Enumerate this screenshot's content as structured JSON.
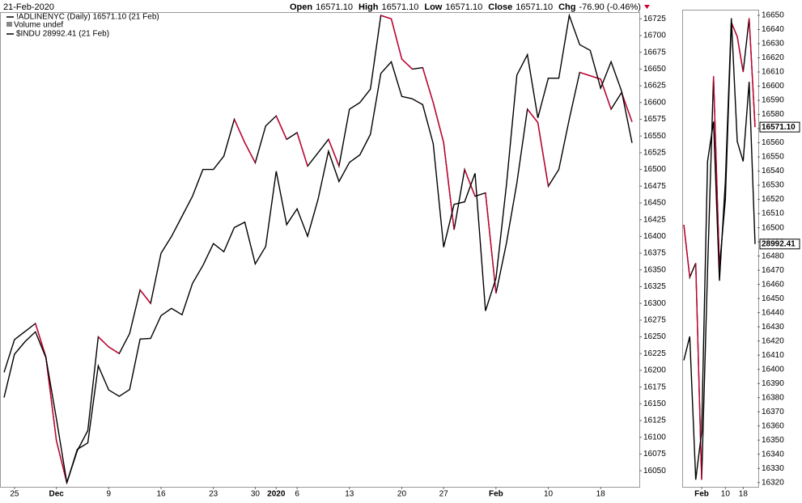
{
  "header": {
    "date": "21-Feb-2020",
    "quote": [
      {
        "label": "Open",
        "value": "16571.10"
      },
      {
        "label": "High",
        "value": "16571.10"
      },
      {
        "label": "Low",
        "value": "16571.10"
      },
      {
        "label": "Close",
        "value": "16571.10"
      },
      {
        "label": "Chg",
        "value": "-76.90 (-0.46%)"
      }
    ]
  },
  "chart_data": [
    {
      "type": "line",
      "legend_note": "Volume undef",
      "categories": [
        null,
        "25",
        null,
        null,
        null,
        "Dec",
        null,
        null,
        null,
        null,
        "9",
        null,
        null,
        null,
        null,
        "16",
        null,
        null,
        null,
        null,
        "23",
        null,
        null,
        null,
        "30",
        null,
        "2020",
        null,
        "6",
        null,
        null,
        null,
        null,
        "13",
        null,
        null,
        null,
        null,
        "20",
        null,
        null,
        null,
        "27",
        null,
        null,
        null,
        null,
        "Feb",
        null,
        null,
        null,
        null,
        "10",
        null,
        null,
        null,
        null,
        "18",
        null,
        null,
        null
      ],
      "series": [
        {
          "name": "!ADLINENYC (Daily) 16571.10 (21 Feb)",
          "color": "#000000",
          "down_color": "#cc0033",
          "values": [
            16197,
            16246,
            16258,
            16270,
            16220,
            16095,
            16032,
            16080,
            16110,
            16250,
            16235,
            16225,
            16255,
            16320,
            16300,
            16375,
            16400,
            16430,
            16460,
            16500,
            16500,
            16520,
            16575,
            16540,
            16510,
            16565,
            16580,
            16545,
            16555,
            16505,
            16525,
            16545,
            16505,
            16590,
            16600,
            16620,
            16730,
            16725,
            16665,
            16650,
            16652,
            16600,
            16540,
            16410,
            16500,
            16460,
            16465,
            16315,
            16390,
            16480,
            16590,
            16570,
            16475,
            16500,
            16575,
            16645,
            16640,
            16635,
            16590,
            16615,
            16571.1
          ]
        },
        {
          "name": "$INDU 28992.41 (21 Feb)",
          "color": "#000000",
          "axis": "overlay",
          "values": [
            27876,
            28066,
            28121,
            28164,
            28051,
            27783,
            27502,
            27649,
            27677,
            28015,
            27909,
            27881,
            27911,
            28132,
            28135,
            28235,
            28267,
            28239,
            28376,
            28455,
            28551,
            28515,
            28621,
            28645,
            28462,
            28538,
            28868,
            28634,
            28703,
            28583,
            28745,
            28956,
            28823,
            28907,
            28940,
            29030,
            29297,
            29348,
            29196,
            29186,
            29160,
            28989,
            28535,
            28723,
            28734,
            28859,
            28256,
            28399,
            28808,
            29290,
            29379,
            29102,
            29276,
            29276,
            29551,
            29423,
            29398,
            29232,
            29348,
            29219,
            28992.41
          ]
        }
      ],
      "ylim": [
        16026,
        16735
      ],
      "yticks": [
        16050,
        16075,
        16100,
        16125,
        16150,
        16175,
        16200,
        16225,
        16250,
        16275,
        16300,
        16325,
        16350,
        16375,
        16400,
        16425,
        16450,
        16475,
        16500,
        16525,
        16550,
        16575,
        16600,
        16625,
        16650,
        16675,
        16700,
        16725
      ]
    },
    {
      "type": "line",
      "categories": [
        null,
        null,
        null,
        "Feb",
        null,
        null,
        null,
        "10",
        null,
        null,
        "18",
        null,
        null
      ],
      "series": [
        {
          "name": "!ADLINENYC",
          "color": "#000000",
          "down_color": "#cc0033",
          "last_label": "16571.10",
          "values": [
            16502,
            16465,
            16475,
            16322,
            16470,
            16607,
            16472,
            16520,
            16645,
            16635,
            16610,
            16648,
            16571.1
          ]
        },
        {
          "name": "$INDU",
          "color": "#000000",
          "axis": "overlay",
          "last_label": "28992.41",
          "values": [
            28700,
            28760,
            28400,
            28520,
            29200,
            29300,
            28900,
            29150,
            29560,
            29250,
            29200,
            29400,
            28992.41
          ]
        }
      ],
      "ylim": [
        16317,
        16654
      ],
      "yticks": [
        16320,
        16330,
        16340,
        16350,
        16360,
        16370,
        16380,
        16390,
        16400,
        16410,
        16420,
        16430,
        16440,
        16450,
        16460,
        16470,
        16480,
        16490,
        16500,
        16510,
        16520,
        16530,
        16540,
        16550,
        16560,
        16570,
        16580,
        16590,
        16600,
        16610,
        16620,
        16630,
        16640,
        16650
      ]
    }
  ]
}
